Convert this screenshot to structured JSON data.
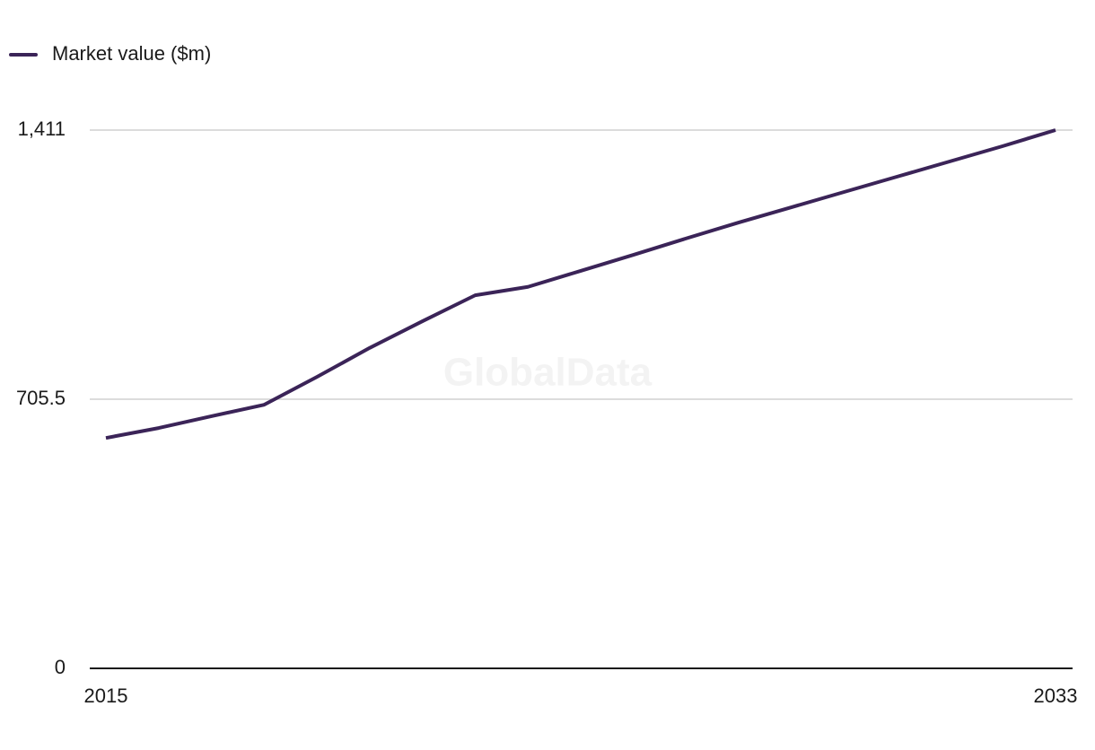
{
  "chart_data": {
    "type": "line",
    "watermark": "GlobalData",
    "x": [
      2015,
      2016,
      2017,
      2018,
      2019,
      2020,
      2021,
      2022,
      2023,
      2024,
      2025,
      2026,
      2027,
      2028,
      2029,
      2030,
      2031,
      2032,
      2033
    ],
    "xlim": [
      2015,
      2033
    ],
    "xticks": [
      2015,
      2033
    ],
    "ylim": [
      0,
      1411
    ],
    "yticks": [
      0,
      705.5,
      {
        "value": 1411,
        "label": "1,411"
      }
    ],
    "grid": true,
    "legend": "top-left",
    "series": [
      {
        "name": "Market value ($m)",
        "color": "#3b2458",
        "values": [
          604,
          630,
          661,
          691,
          764,
          840,
          910,
          978,
          1000,
          1042,
          1084,
          1127,
          1169,
          1209,
          1249,
          1289,
          1329,
          1369,
          1411
        ]
      }
    ]
  }
}
